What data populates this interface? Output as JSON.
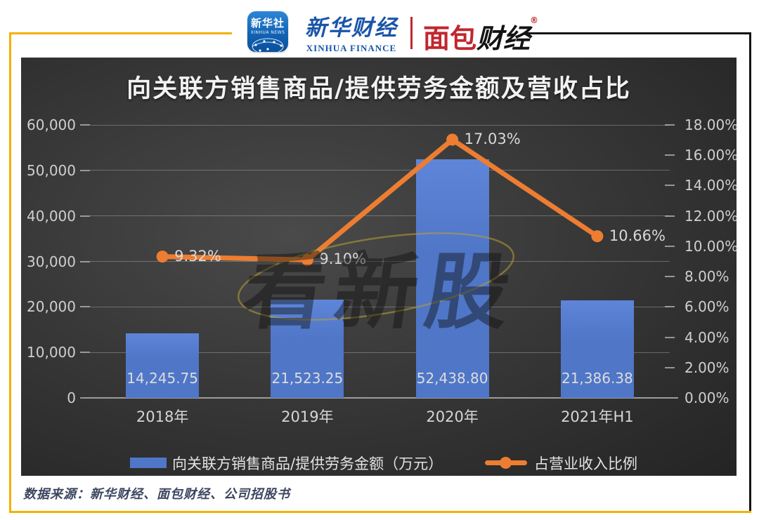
{
  "header": {
    "xinhua_app": {
      "title": "新华社",
      "subtitle": "XINHUA NEWS"
    },
    "xinhua_finance": {
      "title": "新华财经",
      "subtitle": "XINHUA FINANCE"
    },
    "bread_finance": {
      "title_red": "面包",
      "title_black": "财经",
      "registered": "®"
    }
  },
  "chart_data": {
    "type": "combo",
    "title": "向关联方销售商品/提供劳务金额及营收占比",
    "categories": [
      "2018年",
      "2019年",
      "2020年",
      "2021年H1"
    ],
    "series": [
      {
        "name": "向关联方销售商品/提供劳务金额（万元）",
        "type": "bar",
        "axis": "left",
        "values": [
          14245.75,
          21523.25,
          52438.8,
          21386.38
        ],
        "labels": [
          "14,245.75",
          "21,523.25",
          "52,438.80",
          "21,386.38"
        ],
        "color": "#4f76c7"
      },
      {
        "name": "占营业收入比例",
        "type": "line",
        "axis": "right",
        "values": [
          9.32,
          9.1,
          17.03,
          10.66
        ],
        "labels": [
          "9.32%",
          "9.10%",
          "17.03%",
          "10.66%"
        ],
        "color": "#ed7d31"
      }
    ],
    "left_axis": {
      "min": 0,
      "max": 60000,
      "ticks": [
        {
          "label": "60,000",
          "value": 60000
        },
        {
          "label": "50,000",
          "value": 50000
        },
        {
          "label": "40,000",
          "value": 40000
        },
        {
          "label": "30,000",
          "value": 30000
        },
        {
          "label": "20,000",
          "value": 20000
        },
        {
          "label": "10,000",
          "value": 10000
        },
        {
          "label": "0",
          "value": 0
        }
      ]
    },
    "right_axis": {
      "min": 0,
      "max": 18,
      "ticks": [
        {
          "label": "18.00%",
          "value": 18
        },
        {
          "label": "16.00%",
          "value": 16
        },
        {
          "label": "14.00%",
          "value": 14
        },
        {
          "label": "12.00%",
          "value": 12
        },
        {
          "label": "10.00%",
          "value": 10
        },
        {
          "label": "8.00%",
          "value": 8
        },
        {
          "label": "6.00%",
          "value": 6
        },
        {
          "label": "4.00%",
          "value": 4
        },
        {
          "label": "2.00%",
          "value": 2
        },
        {
          "label": "0.00%",
          "value": 0
        }
      ]
    },
    "legend_position": "bottom",
    "grid": true
  },
  "watermark": {
    "text": "看新股"
  },
  "footer": {
    "source": "数据来源：新华财经、面包财经、公司招股书"
  },
  "colors": {
    "bar": "#4f76c7",
    "line": "#ed7d31",
    "frame_yellow": "#f2b200",
    "frame_black": "#141414",
    "panel_background": "#3a3a3a",
    "brand_blue": "#1a55a8",
    "brand_red": "#c1272d"
  }
}
